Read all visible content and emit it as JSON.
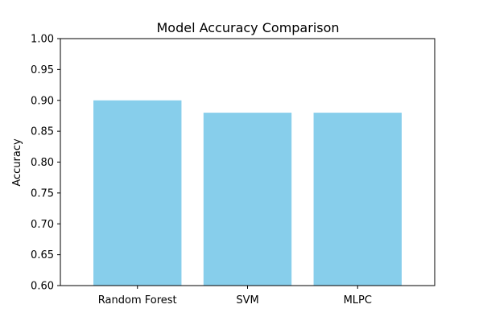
{
  "chart_data": {
    "type": "bar",
    "title": "Model Accuracy Comparison",
    "xlabel": "",
    "ylabel": "Accuracy",
    "categories": [
      "Random Forest",
      "SVM",
      "MLPC"
    ],
    "values": [
      0.9,
      0.88,
      0.88
    ],
    "ylim": [
      0.6,
      1.0
    ],
    "yticks": [
      "0.60",
      "0.65",
      "0.70",
      "0.75",
      "0.80",
      "0.85",
      "0.90",
      "0.95",
      "1.00"
    ],
    "grid": false,
    "legend": "none",
    "bar_color": "#87CEEB"
  }
}
